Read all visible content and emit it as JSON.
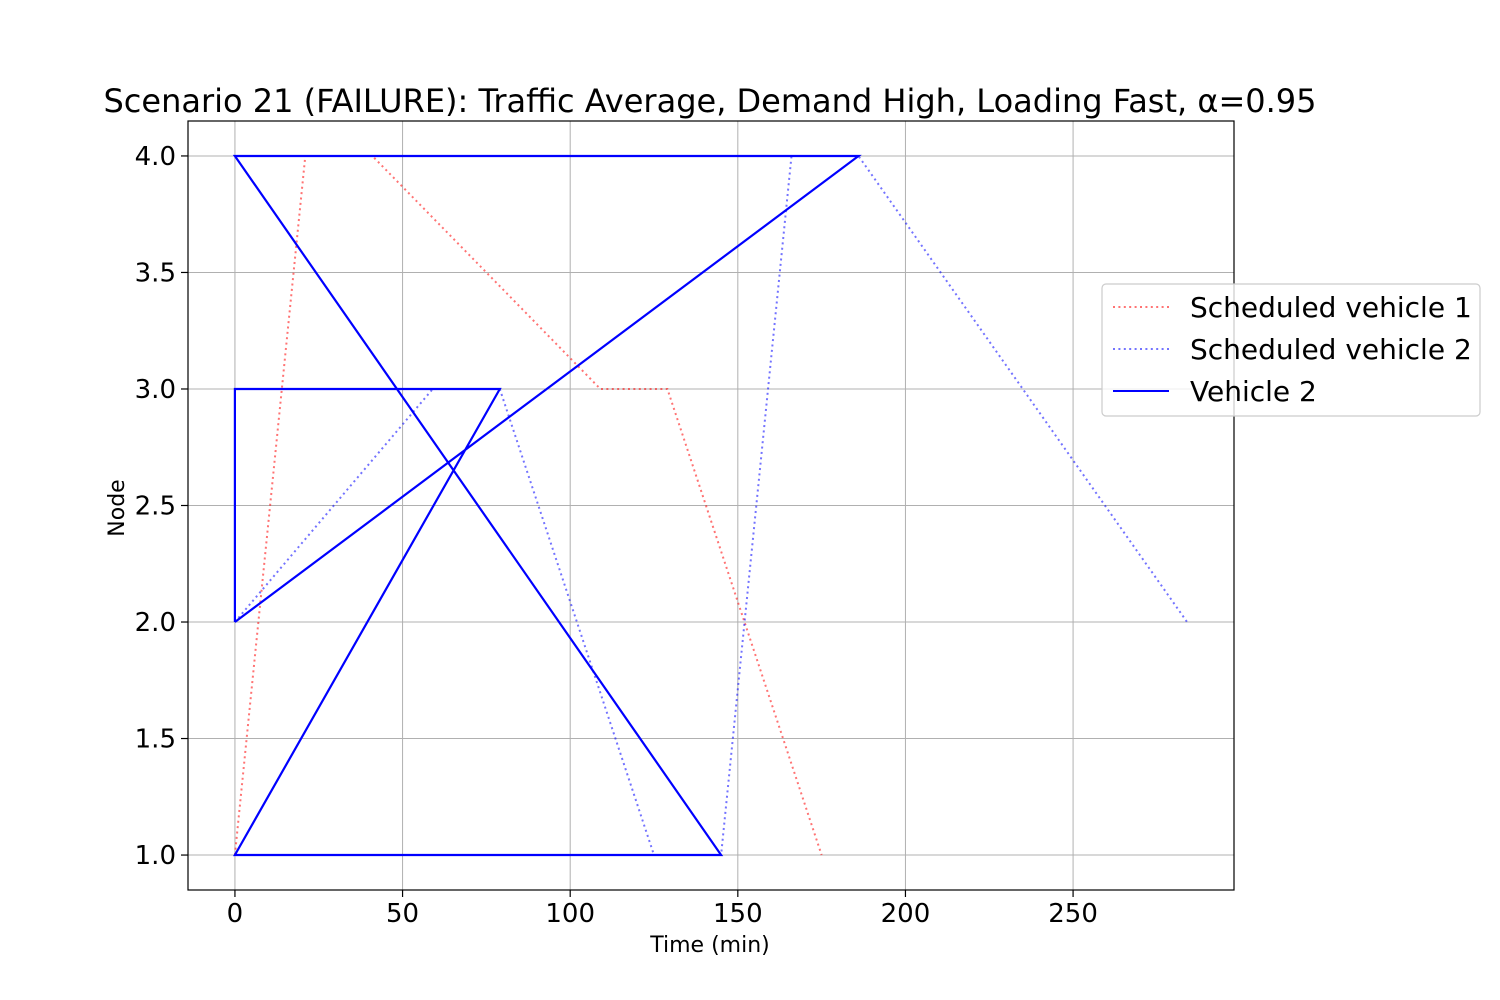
{
  "chart_data": {
    "type": "line",
    "title": "Scenario 21 (FAILURE): Traffic Average, Demand High, Loading Fast, α=0.95",
    "xlabel": "Time (min)",
    "ylabel": "Node",
    "xlim": [
      -14,
      298
    ],
    "ylim": [
      0.85,
      4.15
    ],
    "xticks": [
      0,
      50,
      100,
      150,
      200,
      250
    ],
    "yticks": [
      1.0,
      1.5,
      2.0,
      2.5,
      3.0,
      3.5,
      4.0
    ],
    "grid": true,
    "legend_position": "right",
    "series": [
      {
        "name": "Scheduled vehicle 1",
        "color": "#ff0000",
        "style": "dotted",
        "alpha": 0.55,
        "points": [
          [
            0,
            1
          ],
          [
            21,
            4
          ],
          [
            41,
            4
          ],
          [
            109,
            3
          ],
          [
            129,
            3
          ],
          [
            175,
            1
          ]
        ]
      },
      {
        "name": "Scheduled vehicle 2",
        "color": "#0000ff",
        "style": "dotted",
        "alpha": 0.55,
        "points": [
          [
            0,
            2
          ],
          [
            59,
            3
          ],
          [
            79,
            3
          ],
          [
            125,
            1
          ],
          [
            145,
            1
          ],
          [
            166,
            4
          ],
          [
            186,
            4
          ],
          [
            284,
            2
          ]
        ]
      },
      {
        "name": "Vehicle 2",
        "color": "#0000ff",
        "style": "solid",
        "alpha": 1,
        "points": [
          [
            0,
            2
          ],
          [
            0,
            3
          ],
          [
            79,
            3
          ],
          [
            0,
            1
          ],
          [
            145,
            1
          ],
          [
            0,
            4
          ],
          [
            186,
            4
          ],
          [
            0,
            2
          ]
        ]
      }
    ]
  }
}
